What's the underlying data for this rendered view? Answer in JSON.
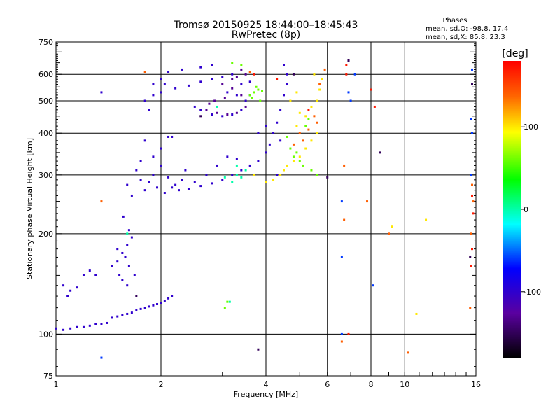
{
  "chart_data": {
    "type": "scatter",
    "title": "Tromsø 20150925 18:44:00–18:45:43",
    "subtitle": "RwPretec (8p)",
    "xlabel": "Frequency [MHz]",
    "ylabel": "Stationary phase Virtual Height [km]",
    "x_scale": "log",
    "y_scale": "log",
    "xlim": [
      1,
      16
    ],
    "ylim": [
      75,
      750
    ],
    "x_ticks": [
      1,
      2,
      4,
      6,
      8,
      10,
      16
    ],
    "y_ticks": [
      75,
      100,
      200,
      300,
      400,
      500,
      600,
      750
    ],
    "x_gridlines": [
      2,
      4,
      6,
      8,
      10
    ],
    "y_gridlines": [
      100,
      200,
      300,
      400,
      500,
      600
    ],
    "grid": true,
    "stats": {
      "header": "Phases",
      "line_o": "mean, sd,O: -98.8, 17.4",
      "line_x": "mean, sd,X:  85.8, 23.3"
    },
    "colorbar": {
      "label": "[deg]",
      "range": [
        -180,
        180
      ],
      "ticks": [
        100,
        0,
        -100
      ],
      "colors": [
        "#ff0000",
        "#ff8800",
        "#ffff00",
        "#00ff00",
        "#00ffff",
        "#0000ff",
        "#6600aa",
        "#000000"
      ]
    },
    "series": [
      {
        "phase_deg": -100,
        "points": [
          [
            1.0,
            104
          ],
          [
            1.05,
            103
          ],
          [
            1.1,
            104
          ],
          [
            1.15,
            105
          ],
          [
            1.2,
            105
          ],
          [
            1.25,
            106
          ],
          [
            1.3,
            107
          ],
          [
            1.35,
            107
          ],
          [
            1.4,
            108
          ],
          [
            1.45,
            112
          ],
          [
            1.5,
            113
          ],
          [
            1.55,
            114
          ],
          [
            1.6,
            115
          ],
          [
            1.65,
            116
          ],
          [
            1.7,
            118
          ],
          [
            1.75,
            119
          ],
          [
            1.8,
            120
          ],
          [
            1.85,
            121
          ],
          [
            1.9,
            122
          ],
          [
            1.95,
            123
          ],
          [
            2.0,
            124
          ],
          [
            2.05,
            126
          ],
          [
            2.1,
            128
          ],
          [
            2.15,
            130
          ],
          [
            1.45,
            160
          ],
          [
            1.5,
            165
          ],
          [
            1.55,
            175
          ],
          [
            1.6,
            185
          ],
          [
            1.65,
            195
          ],
          [
            1.52,
            150
          ],
          [
            1.58,
            170
          ],
          [
            1.62,
            205
          ],
          [
            1.56,
            225
          ],
          [
            1.62,
            160
          ],
          [
            1.5,
            180
          ],
          [
            1.68,
            150
          ],
          [
            1.6,
            140
          ],
          [
            1.55,
            145
          ],
          [
            1.05,
            140
          ],
          [
            1.1,
            135
          ],
          [
            1.2,
            150
          ],
          [
            1.25,
            155
          ],
          [
            1.08,
            130
          ],
          [
            1.15,
            138
          ],
          [
            1.6,
            280
          ],
          [
            1.65,
            260
          ],
          [
            1.75,
            290
          ],
          [
            1.8,
            270
          ],
          [
            1.9,
            300
          ],
          [
            2.0,
            320
          ],
          [
            2.1,
            295
          ],
          [
            1.7,
            310
          ],
          [
            1.85,
            285
          ],
          [
            1.95,
            275
          ],
          [
            2.05,
            265
          ],
          [
            2.15,
            275
          ],
          [
            2.25,
            270
          ],
          [
            2.4,
            272
          ],
          [
            2.6,
            278
          ],
          [
            2.8,
            283
          ],
          [
            3.0,
            290
          ],
          [
            3.2,
            300
          ],
          [
            3.4,
            310
          ],
          [
            3.6,
            320
          ],
          [
            3.8,
            330
          ],
          [
            4.0,
            350
          ],
          [
            4.1,
            370
          ],
          [
            4.2,
            400
          ],
          [
            4.3,
            430
          ],
          [
            4.4,
            470
          ],
          [
            4.5,
            520
          ],
          [
            4.6,
            600
          ],
          [
            2.2,
            280
          ],
          [
            2.3,
            290
          ],
          [
            2.5,
            285
          ],
          [
            2.7,
            300
          ],
          [
            2.9,
            320
          ],
          [
            3.1,
            340
          ],
          [
            3.3,
            335
          ],
          [
            2.35,
            310
          ],
          [
            2.0,
            360
          ],
          [
            1.8,
            380
          ],
          [
            1.75,
            330
          ],
          [
            1.9,
            340
          ],
          [
            2.1,
            390
          ],
          [
            1.8,
            500
          ],
          [
            1.9,
            520
          ],
          [
            2.0,
            530
          ],
          [
            2.2,
            545
          ],
          [
            2.4,
            555
          ],
          [
            2.6,
            570
          ],
          [
            2.8,
            580
          ],
          [
            3.0,
            590
          ],
          [
            3.2,
            600
          ],
          [
            2.1,
            610
          ],
          [
            2.3,
            620
          ],
          [
            2.6,
            630
          ],
          [
            2.8,
            640
          ],
          [
            1.9,
            560
          ],
          [
            1.85,
            470
          ],
          [
            2.0,
            580
          ],
          [
            2.5,
            480
          ],
          [
            2.6,
            470
          ],
          [
            2.8,
            455
          ],
          [
            3.0,
            450
          ],
          [
            3.2,
            455
          ],
          [
            3.4,
            470
          ],
          [
            3.5,
            500
          ],
          [
            3.3,
            520
          ],
          [
            3.1,
            530
          ],
          [
            3.4,
            560
          ],
          [
            3.6,
            570
          ],
          [
            4.5,
            640
          ],
          [
            4.6,
            560
          ],
          [
            4.4,
            380
          ],
          [
            4.3,
            300
          ],
          [
            4.0,
            420
          ],
          [
            3.8,
            400
          ],
          [
            1.35,
            530
          ],
          [
            2.05,
            560
          ],
          [
            2.15,
            390
          ],
          [
            1.3,
            150
          ],
          [
            3.6,
            520
          ]
        ]
      },
      {
        "phase_deg": -130,
        "points": [
          [
            2.7,
            470
          ],
          [
            2.9,
            460
          ],
          [
            3.1,
            455
          ],
          [
            3.3,
            460
          ],
          [
            3.5,
            480
          ],
          [
            3.4,
            520
          ],
          [
            3.2,
            545
          ],
          [
            3.0,
            560
          ],
          [
            2.75,
            490
          ],
          [
            2.85,
            500
          ],
          [
            3.05,
            510
          ],
          [
            3.3,
            590
          ],
          [
            3.5,
            600
          ],
          [
            3.4,
            620
          ],
          [
            3.2,
            580
          ]
        ]
      },
      {
        "phase_deg": 0,
        "points": [
          [
            3.2,
            285
          ],
          [
            3.3,
            300
          ],
          [
            3.4,
            295
          ],
          [
            3.5,
            310
          ],
          [
            3.05,
            295
          ],
          [
            1.6,
            200
          ],
          [
            2.9,
            480
          ],
          [
            3.3,
            320
          ],
          [
            3.15,
            125
          ]
        ]
      },
      {
        "phase_deg": 60,
        "points": [
          [
            3.6,
            520
          ],
          [
            3.7,
            530
          ],
          [
            3.8,
            540
          ],
          [
            3.9,
            535
          ],
          [
            3.65,
            510
          ],
          [
            3.75,
            550
          ],
          [
            3.85,
            500
          ],
          [
            3.2,
            650
          ],
          [
            3.4,
            640
          ],
          [
            3.1,
            125
          ],
          [
            3.05,
            120
          ],
          [
            5.2,
            420
          ],
          [
            5.3,
            440
          ],
          [
            4.7,
            360
          ],
          [
            4.6,
            390
          ],
          [
            4.8,
            340
          ],
          [
            4.9,
            350
          ],
          [
            5.0,
            330
          ],
          [
            5.1,
            320
          ],
          [
            5.4,
            310
          ],
          [
            5.6,
            300
          ]
        ]
      },
      {
        "phase_deg": 100,
        "points": [
          [
            4.4,
            300
          ],
          [
            4.5,
            310
          ],
          [
            4.6,
            320
          ],
          [
            4.8,
            330
          ],
          [
            5.0,
            340
          ],
          [
            5.2,
            360
          ],
          [
            5.4,
            380
          ],
          [
            5.6,
            400
          ],
          [
            5.2,
            450
          ],
          [
            5.4,
            480
          ],
          [
            5.0,
            460
          ],
          [
            4.9,
            420
          ],
          [
            5.6,
            500
          ],
          [
            5.7,
            540
          ],
          [
            5.8,
            580
          ],
          [
            4.2,
            290
          ],
          [
            4.0,
            285
          ],
          [
            3.7,
            300
          ],
          [
            4.7,
            500
          ],
          [
            4.9,
            530
          ],
          [
            5.5,
            600
          ],
          [
            10.8,
            115
          ],
          [
            9.2,
            210
          ],
          [
            11.5,
            220
          ]
        ]
      },
      {
        "phase_deg": 140,
        "points": [
          [
            5.1,
            380
          ],
          [
            5.3,
            410
          ],
          [
            5.5,
            450
          ],
          [
            5.0,
            400
          ],
          [
            5.7,
            560
          ],
          [
            5.9,
            620
          ],
          [
            1.8,
            610
          ],
          [
            3.6,
            610
          ],
          [
            5.6,
            430
          ],
          [
            4.8,
            370
          ],
          [
            6.7,
            320
          ],
          [
            6.7,
            220
          ],
          [
            9.0,
            200
          ],
          [
            10.2,
            88
          ],
          [
            6.6,
            95
          ],
          [
            1.35,
            250
          ],
          [
            7.8,
            250
          ],
          [
            15.7,
            250
          ],
          [
            15.6,
            280
          ],
          [
            15.5,
            200
          ],
          [
            15.4,
            120
          ]
        ]
      },
      {
        "phase_deg": 170,
        "points": [
          [
            3.7,
            600
          ],
          [
            4.3,
            580
          ],
          [
            5.3,
            470
          ],
          [
            6.9,
            100
          ],
          [
            8.2,
            480
          ],
          [
            8.0,
            540
          ],
          [
            15.6,
            260
          ],
          [
            15.7,
            230
          ],
          [
            15.5,
            160
          ],
          [
            6.8,
            600
          ],
          [
            6.8,
            640
          ],
          [
            15.6,
            180
          ]
        ]
      },
      {
        "phase_deg": -60,
        "points": [
          [
            6.6,
            250
          ],
          [
            7.2,
            600
          ],
          [
            6.6,
            170
          ],
          [
            8.1,
            140
          ],
          [
            6.6,
            100
          ],
          [
            15.6,
            620
          ],
          [
            15.5,
            300
          ],
          [
            15.5,
            440
          ],
          [
            15.6,
            400
          ],
          [
            6.9,
            530
          ],
          [
            7.0,
            500
          ],
          [
            1.35,
            85
          ]
        ]
      },
      {
        "phase_deg": -150,
        "points": [
          [
            6.0,
            295
          ],
          [
            8.5,
            350
          ],
          [
            15.6,
            560
          ],
          [
            15.4,
            170
          ],
          [
            6.9,
            660
          ],
          [
            4.8,
            600
          ],
          [
            2.6,
            450
          ],
          [
            3.8,
            90
          ],
          [
            1.7,
            130
          ]
        ]
      }
    ]
  }
}
